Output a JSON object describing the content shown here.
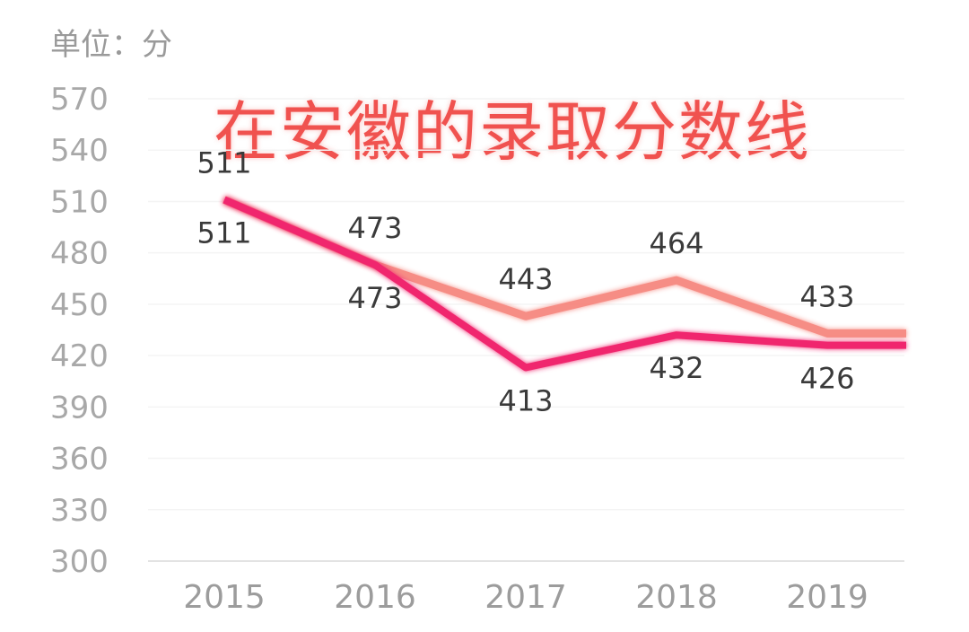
{
  "unit_label": "单位：分",
  "chart_data": {
    "type": "line",
    "title": "在安徽的录取分数线",
    "categories": [
      "2015",
      "2016",
      "2017",
      "2018",
      "2019"
    ],
    "series": [
      {
        "values": [
          511,
          473,
          443,
          464,
          433
        ],
        "color": "#f6877f"
      },
      {
        "values": [
          511,
          473,
          413,
          432,
          426
        ],
        "color": "#f0286e"
      }
    ],
    "ylim": [
      300,
      570
    ],
    "yticks": [
      570,
      540,
      510,
      480,
      450,
      420,
      390,
      360,
      330,
      300
    ],
    "grid": true,
    "legend": "none"
  }
}
